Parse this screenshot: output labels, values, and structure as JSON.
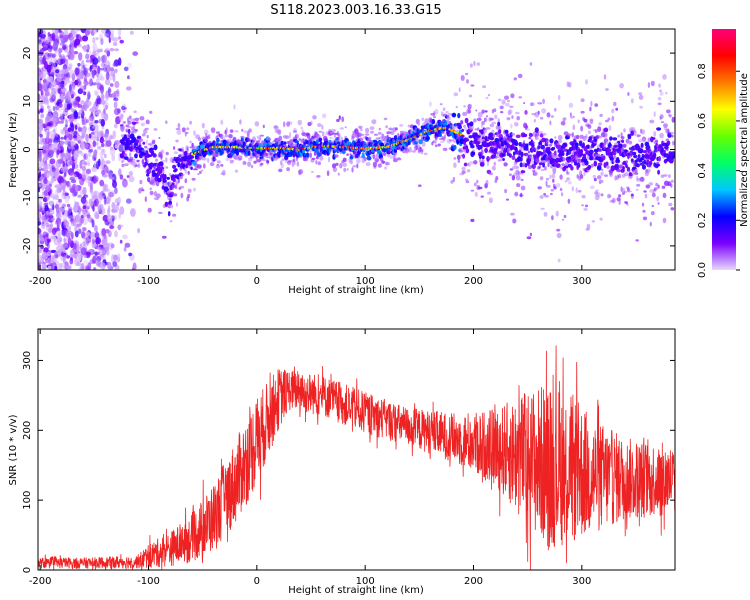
{
  "figure_title": "S118.2023.003.16.33.G15",
  "chart_data": [
    {
      "type": "heatmap",
      "title": "",
      "xlabel": "Height of straight line (km)",
      "ylabel": "Frequency (Hz)",
      "xlim": [
        -202,
        386
      ],
      "ylim": [
        -25,
        25
      ],
      "xticks": [
        -200,
        -100,
        0,
        100,
        200,
        300
      ],
      "yticks": [
        -20,
        -10,
        0,
        10,
        20
      ],
      "colorbar": {
        "label": "Normalized spectral amplitude",
        "range": [
          0,
          0.97
        ],
        "ticks": [
          0.0,
          0.2,
          0.4,
          0.6,
          0.8
        ],
        "colormap": [
          "#e8d8ff",
          "#7a00ff",
          "#0000ff",
          "#00c8ff",
          "#00ff66",
          "#66ff00",
          "#ffff00",
          "#ff7a00",
          "#ff0000",
          "#ff007a"
        ]
      },
      "ridge_frequency": {
        "x": [
          -125,
          -115,
          -105,
          -95,
          -85,
          -80,
          -75,
          -70,
          -60,
          -40,
          -20,
          0,
          20,
          40,
          60,
          80,
          100,
          120,
          140,
          160,
          175,
          190,
          200,
          220,
          240,
          260,
          280,
          300,
          320,
          340,
          360,
          385
        ],
        "y": [
          0.5,
          2,
          -1,
          -3,
          -6,
          -10,
          -4,
          -2,
          -1,
          0.5,
          0.5,
          0.3,
          0.3,
          0,
          0.8,
          0.5,
          0.2,
          0.5,
          2,
          4,
          4.5,
          3,
          2,
          1,
          0,
          -1,
          -1.5,
          -1,
          0,
          -1.5,
          -1,
          -1
        ]
      }
    },
    {
      "type": "line",
      "title": "",
      "xlabel": "Height of straight line (km)",
      "ylabel": "SNR (10 * v/v)",
      "xlim": [
        -202,
        386
      ],
      "ylim": [
        0,
        345
      ],
      "xticks": [
        -200,
        -100,
        0,
        100,
        200,
        300
      ],
      "yticks": [
        0,
        100,
        200,
        300
      ],
      "series": [
        {
          "color": "#ee2222",
          "envelope": {
            "x": [
              -202,
              -150,
              -110,
              -100,
              -80,
              -60,
              -40,
              -20,
              0,
              20,
              30,
              40,
              60,
              100,
              140,
              180,
              220,
              250,
              270,
              290,
              310,
              340,
              386
            ],
            "mean": [
              10,
              10,
              12,
              20,
              30,
              45,
              75,
              125,
              185,
              245,
              258,
              255,
              250,
              225,
              205,
              190,
              175,
              160,
              150,
              145,
              135,
              130,
              130
            ],
            "spread": [
              8,
              8,
              10,
              18,
              25,
              35,
              50,
              60,
              65,
              45,
              30,
              30,
              30,
              30,
              28,
              35,
              55,
              100,
              120,
              110,
              85,
              60,
              50
            ]
          }
        }
      ]
    }
  ]
}
